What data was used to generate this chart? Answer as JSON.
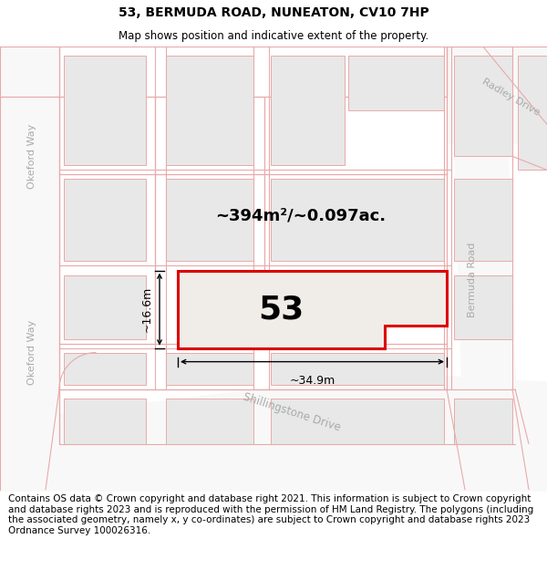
{
  "title": "53, BERMUDA ROAD, NUNEATON, CV10 7HP",
  "subtitle": "Map shows position and indicative extent of the property.",
  "footer": "Contains OS data © Crown copyright and database right 2021. This information is subject to Crown copyright and database rights 2023 and is reproduced with the permission of HM Land Registry. The polygons (including the associated geometry, namely x, y co-ordinates) are subject to Crown copyright and database rights 2023 Ordnance Survey 100026316.",
  "area_text": "~394m²/~0.097ac.",
  "property_number": "53",
  "dim_width": "~34.9m",
  "dim_height": "~16.6m",
  "map_bg": "#ffffff",
  "plot_fill": "#f0eee8",
  "plot_edge_color": "#dd0000",
  "bld_fill": "#e8e8e8",
  "bld_edge": "#e8aaaa",
  "road_fill": "#f8f8f8",
  "road_edge": "#e8aaaa",
  "label_color": "#aaaaaa",
  "title_fontsize": 10,
  "subtitle_fontsize": 8.5,
  "footer_fontsize": 7.5
}
